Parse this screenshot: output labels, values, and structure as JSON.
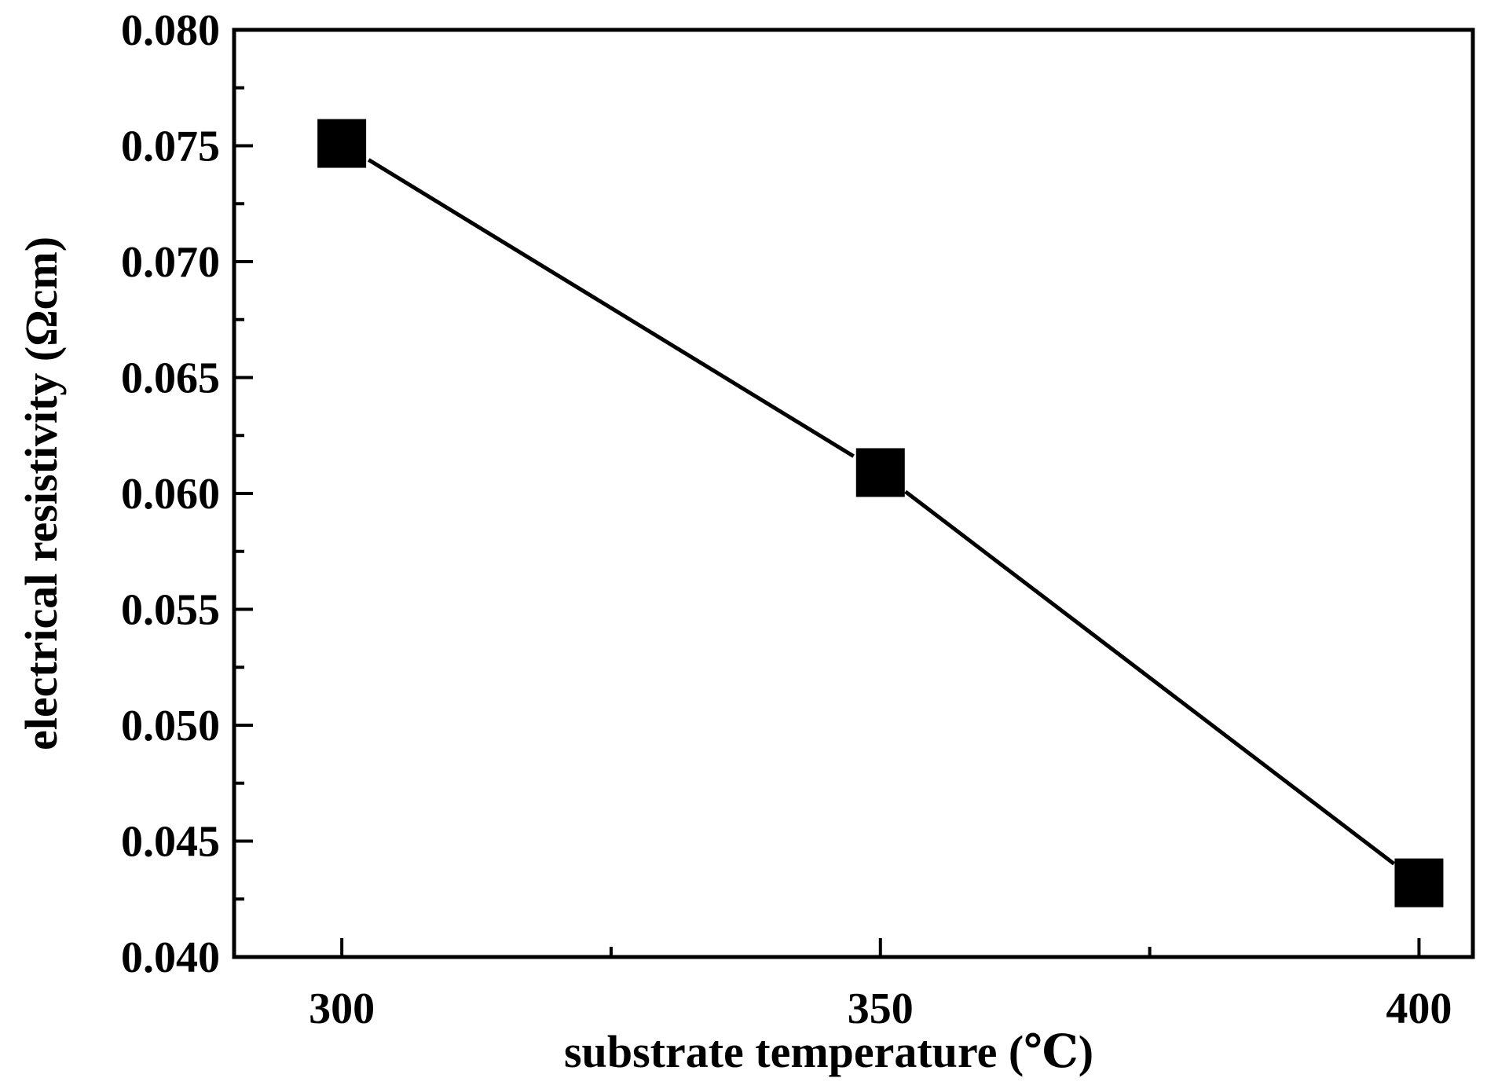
{
  "chart_data": {
    "type": "line",
    "title": "",
    "xlabel": "substrate temperature (℃)",
    "ylabel": "electrical resistivity (Ωcm)",
    "xlim": [
      290,
      405
    ],
    "ylim": [
      0.04,
      0.08
    ],
    "x_ticks": [
      300,
      350,
      400
    ],
    "x_tick_labels": [
      "300",
      "350",
      "400"
    ],
    "x_minor_ticks": [
      325,
      375
    ],
    "y_ticks": [
      0.04,
      0.045,
      0.05,
      0.055,
      0.06,
      0.065,
      0.07,
      0.075,
      0.08
    ],
    "y_tick_labels": [
      "0.040",
      "0.045",
      "0.050",
      "0.055",
      "0.060",
      "0.065",
      "0.070",
      "0.075",
      "0.080"
    ],
    "y_minor_ticks": [
      0.0425,
      0.0475,
      0.0525,
      0.0575,
      0.0625,
      0.0675,
      0.0725,
      0.0775
    ],
    "grid": false,
    "series": [
      {
        "marker": "square",
        "color": "#000000",
        "x": [
          300,
          350,
          400
        ],
        "y": [
          0.0751,
          0.0609,
          0.0432
        ]
      }
    ]
  }
}
